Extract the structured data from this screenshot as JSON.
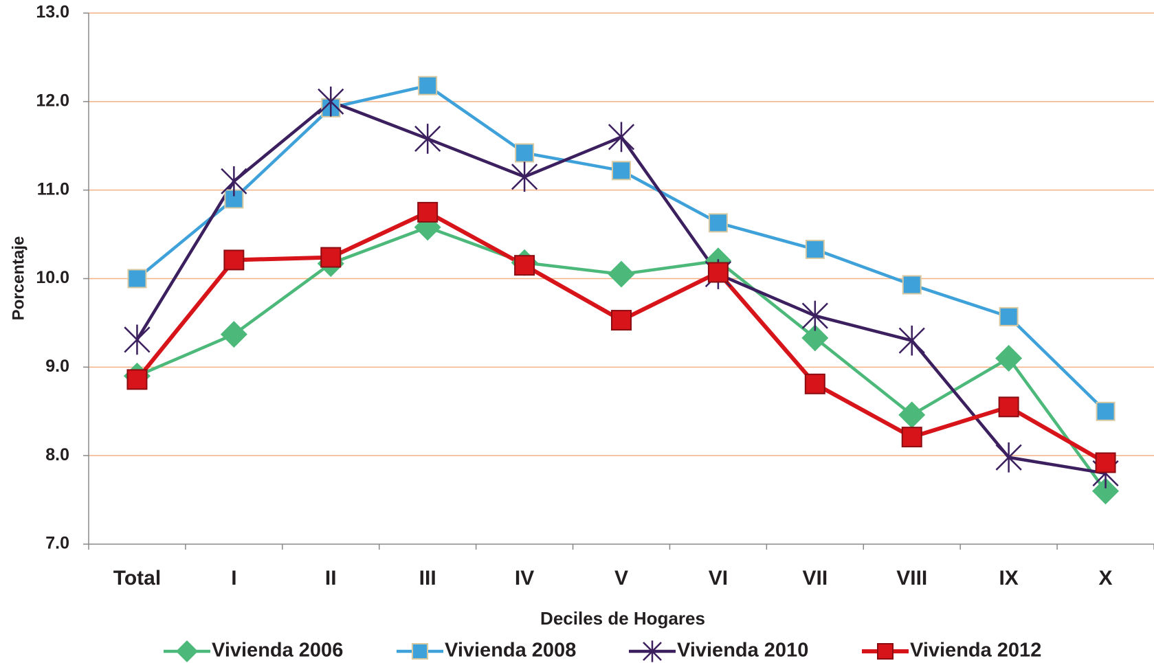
{
  "chart_data": {
    "type": "line",
    "y_label": "Porcentaje",
    "x_label": "Deciles de Hogares",
    "categories": [
      "Total",
      "I",
      "II",
      "III",
      "IV",
      "V",
      "VI",
      "VII",
      "VIII",
      "IX",
      "X"
    ],
    "series": [
      {
        "name": "Vivienda 2006",
        "color": "#4cb97a",
        "marker": "diamond",
        "values": [
          8.9,
          9.37,
          10.17,
          10.58,
          10.18,
          10.05,
          10.2,
          9.33,
          8.46,
          9.1,
          7.6
        ]
      },
      {
        "name": "Vivienda 2008",
        "color": "#3ea1d9",
        "marker": "square",
        "values": [
          10.0,
          10.9,
          11.93,
          12.18,
          11.42,
          11.22,
          10.63,
          10.33,
          9.93,
          9.57,
          8.5
        ]
      },
      {
        "name": "Vivienda 2010",
        "color": "#3b1f5e",
        "marker": "star",
        "values": [
          9.31,
          11.1,
          12.0,
          11.58,
          11.15,
          11.6,
          10.05,
          9.58,
          9.3,
          7.98,
          7.8
        ]
      },
      {
        "name": "Vivienda 2012",
        "color": "#d7141a",
        "marker": "square",
        "values": [
          8.86,
          10.21,
          10.24,
          10.75,
          10.15,
          9.53,
          10.07,
          8.81,
          8.21,
          8.55,
          7.92
        ]
      }
    ],
    "ylim": [
      7,
      13
    ],
    "yticks": [
      {
        "value": 7,
        "label": "7.0"
      },
      {
        "value": 8,
        "label": "8.0"
      },
      {
        "value": 9,
        "label": "9.0"
      },
      {
        "value": 10,
        "label": "10.0"
      },
      {
        "value": 11,
        "label": "11.0"
      },
      {
        "value": 12,
        "label": "12.0"
      },
      {
        "value": 13,
        "label": "13.0"
      }
    ],
    "grid": true,
    "grid_color": "#f4b183",
    "legend": "bottom"
  }
}
